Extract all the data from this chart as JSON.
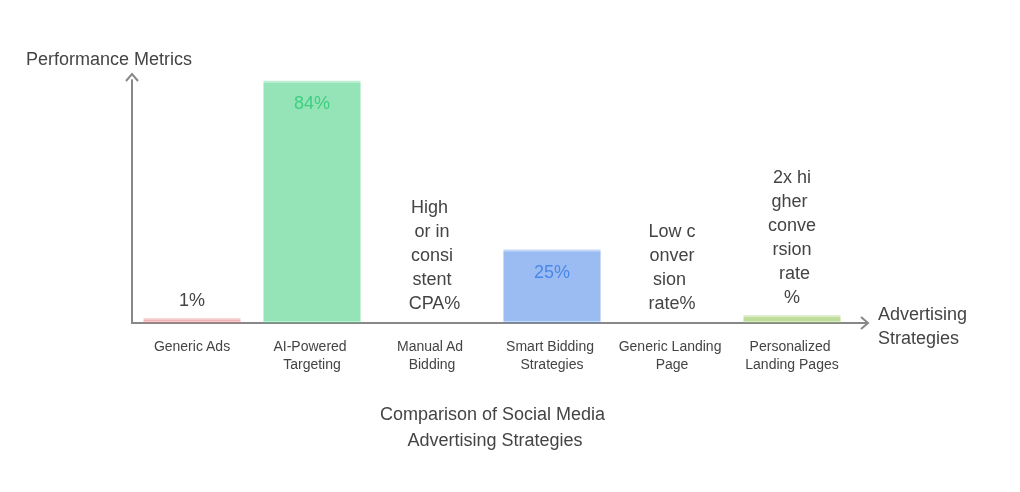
{
  "chart_data": {
    "type": "bar",
    "title": "Comparison of Social Media Advertising Strategies",
    "xlabel": "Advertising Strategies",
    "ylabel": "Performance Metrics",
    "categories": [
      "Generic Ads",
      "AI-Powered Targeting",
      "Manual Ad Bidding",
      "Smart Bidding Strategies",
      "Generic Landing Page",
      "Personalized Landing Pages"
    ],
    "values": [
      1,
      84,
      0,
      25,
      0,
      2
    ],
    "value_labels": [
      "1%",
      "84%",
      "High or inconsistent CPA%",
      "25%",
      "Low conversion rate%",
      "2x higher conversion rate%"
    ],
    "colors": [
      "#e06666",
      "#3ecf7f",
      null,
      "#4a86e8",
      null,
      "#8bc34a"
    ],
    "ylim": [
      0,
      85
    ],
    "tick_labels": "x",
    "grid": false
  }
}
